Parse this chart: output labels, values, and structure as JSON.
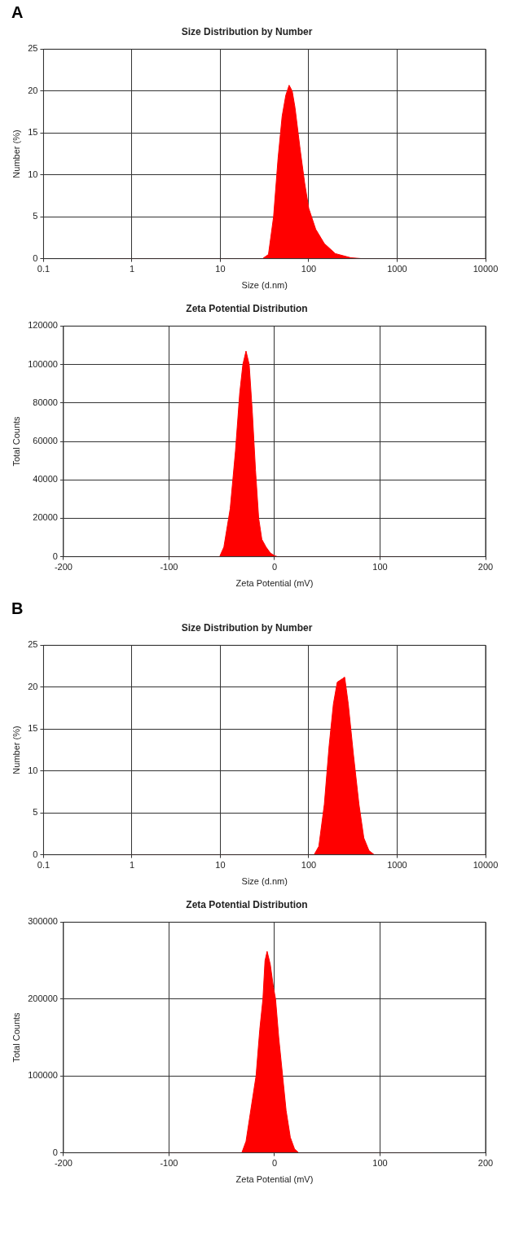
{
  "chart_data": [
    {
      "type": "area",
      "annotations": [
        "A"
      ],
      "title": "Size Distribution by Number",
      "xlabel": "Size (d.nm)",
      "ylabel": "Number (%)",
      "log": "x",
      "grid": true,
      "color": "#ff0000",
      "x": [
        0.4,
        30,
        35,
        40,
        45,
        50,
        55,
        60,
        65,
        70,
        80,
        90,
        100,
        120,
        150,
        200,
        300,
        400,
        10000
      ],
      "values": [
        0,
        0,
        0.5,
        5,
        12,
        17,
        19.5,
        20.7,
        20,
        18,
        13,
        9,
        6,
        3.5,
        1.8,
        0.6,
        0.1,
        0,
        0
      ],
      "xlim": [
        0.1,
        10000
      ],
      "xticks": [
        0.1,
        1,
        10,
        100,
        1000,
        10000
      ],
      "ylim": [
        0,
        25
      ],
      "yticks": [
        0,
        5,
        10,
        15,
        20,
        25
      ]
    },
    {
      "type": "area",
      "title": "Zeta Potential Distribution",
      "xlabel": "Zeta Potential (mV)",
      "ylabel": "Total Counts",
      "grid": true,
      "color": "#ff0000",
      "x": [
        -150,
        -52,
        -48,
        -42,
        -37,
        -33,
        -30,
        -27,
        -24,
        -21,
        -18,
        -15,
        -12,
        -8,
        -4,
        0,
        3,
        150
      ],
      "values": [
        0,
        0,
        5000,
        25000,
        55000,
        85000,
        100000,
        107000,
        100000,
        75000,
        45000,
        20000,
        9000,
        5000,
        2000,
        500,
        0,
        0
      ],
      "xlim": [
        -200,
        200
      ],
      "xticks": [
        -200,
        -100,
        0,
        100,
        200
      ],
      "ylim": [
        0,
        120000
      ],
      "yticks": [
        0,
        20000,
        40000,
        60000,
        80000,
        100000,
        120000
      ]
    },
    {
      "type": "area",
      "annotations": [
        "B"
      ],
      "title": "Size Distribution by Number",
      "xlabel": "Size (d.nm)",
      "ylabel": "Number (%)",
      "log": "x",
      "grid": true,
      "color": "#ff0000",
      "x": [
        0.4,
        115,
        130,
        150,
        170,
        190,
        210,
        240,
        255,
        280,
        320,
        370,
        420,
        480,
        550,
        10000
      ],
      "values": [
        0,
        0,
        1,
        6,
        13,
        18,
        20.6,
        21,
        21.2,
        18,
        12,
        6,
        2,
        0.5,
        0,
        0
      ],
      "xlim": [
        0.1,
        10000
      ],
      "xticks": [
        0.1,
        1,
        10,
        100,
        1000,
        10000
      ],
      "ylim": [
        0,
        25
      ],
      "yticks": [
        0,
        5,
        10,
        15,
        20,
        25
      ]
    },
    {
      "type": "area",
      "title": "Zeta Potential Distribution",
      "xlabel": "Zeta Potential (mV)",
      "ylabel": "Total Counts",
      "grid": true,
      "color": "#ff0000",
      "x": [
        -150,
        -31,
        -27,
        -22,
        -17.5,
        -14,
        -11,
        -9,
        -7,
        -4,
        -1,
        1,
        4,
        7.7,
        11,
        15,
        19,
        23,
        150
      ],
      "values": [
        0,
        0,
        15000,
        60000,
        100000,
        160000,
        200000,
        250000,
        262000,
        245000,
        215000,
        200000,
        150000,
        100000,
        55000,
        20000,
        5000,
        0,
        0
      ],
      "xlim": [
        -200,
        200
      ],
      "xticks": [
        -200,
        -100,
        0,
        100,
        200
      ],
      "ylim": [
        0,
        300000
      ],
      "yticks": [
        0,
        100000,
        200000,
        300000
      ]
    }
  ]
}
